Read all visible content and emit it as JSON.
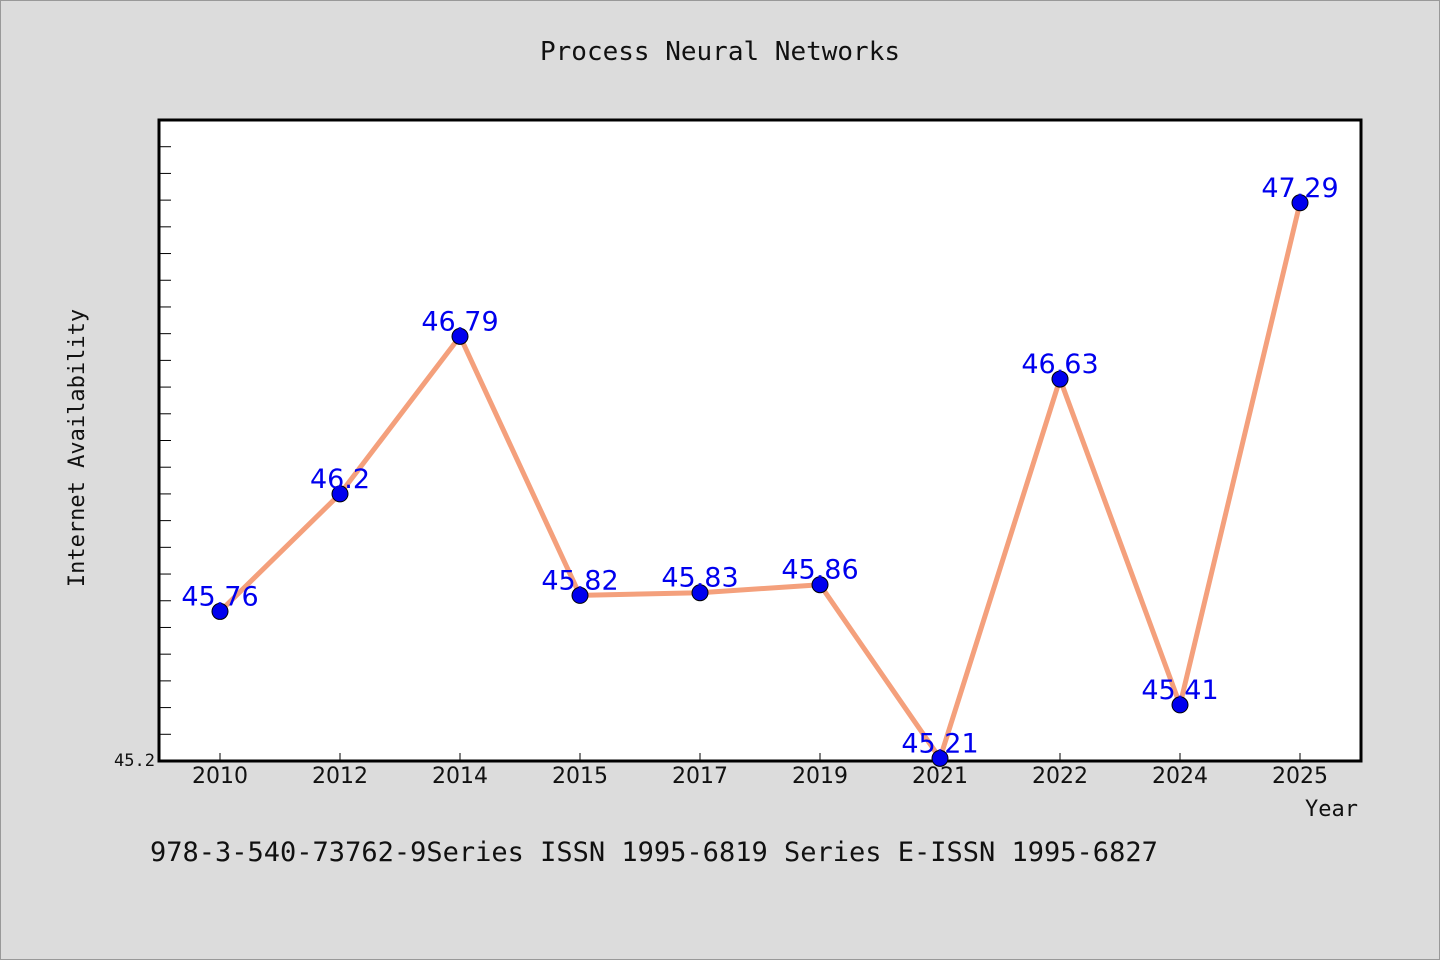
{
  "chart_data": {
    "type": "line",
    "title": "Process Neural Networks",
    "xlabel": "Year",
    "ylabel": "Internet Availability",
    "categories": [
      "2010",
      "2012",
      "2014",
      "2015",
      "2017",
      "2019",
      "2021",
      "2022",
      "2024",
      "2025"
    ],
    "series": [
      {
        "values": [
          45.76,
          46.2,
          46.79,
          45.82,
          45.83,
          45.86,
          45.21,
          46.63,
          45.41,
          47.29
        ]
      }
    ],
    "data_labels": [
      "45.76",
      "46.2",
      "46.79",
      "45.82",
      "45.83",
      "45.86",
      "45.21",
      "46.63",
      "45.41",
      "47.29"
    ],
    "y_tick_label": "45.2",
    "ylim": [
      45.2,
      47.6
    ],
    "grid": false,
    "line_color": "#f4a07c",
    "marker_color": "#0000ee",
    "label_color": "#0000ee"
  },
  "footer": {
    "text": "978-3-540-73762-9Series ISSN 1995-6819 Series E-ISSN 1995-6827"
  }
}
